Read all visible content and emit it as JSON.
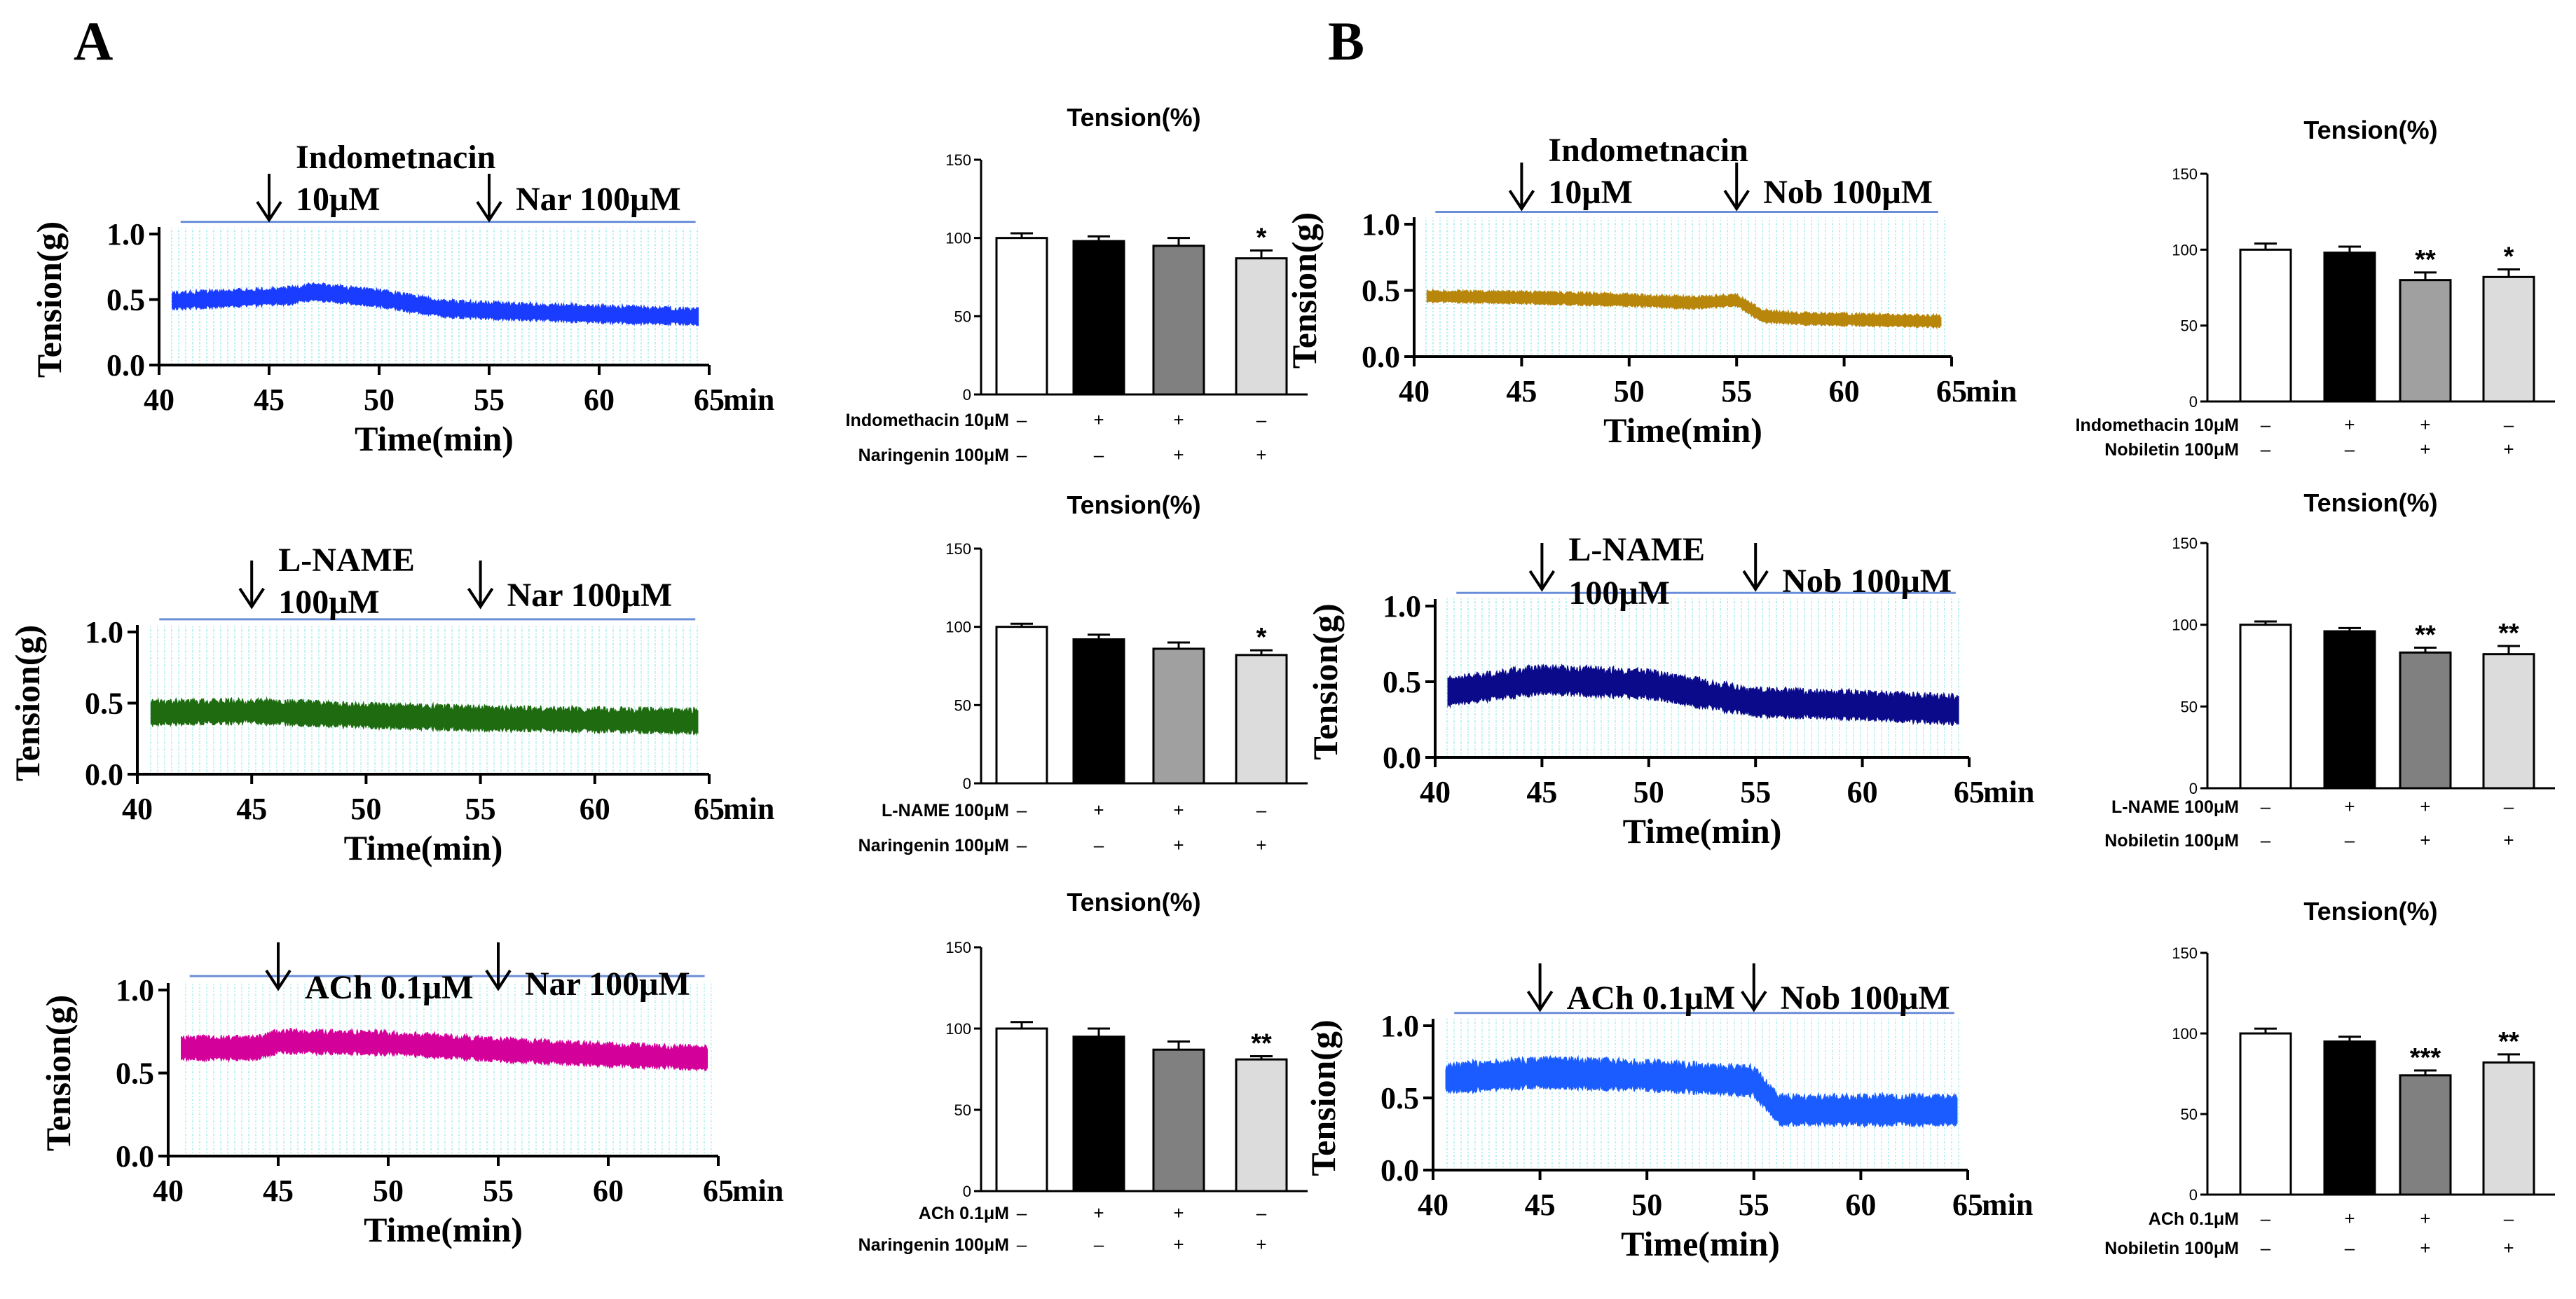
{
  "figure": {
    "panel_labels": [
      "A",
      "B"
    ]
  },
  "chart_data": [
    {
      "type": "line",
      "id": "A1",
      "panel": "A",
      "ylabel": "Tension(g)",
      "xlabel": "Time(min)",
      "xunit": "min",
      "ylim": [
        0,
        1.0
      ],
      "xlim": [
        40,
        65
      ],
      "yticks": [
        "0.0",
        "0.5",
        "1.0"
      ],
      "xticks": [
        "40",
        "45",
        "50",
        "55",
        "60",
        "65"
      ],
      "color": "#1a3cff",
      "trace": {
        "base": [
          [
            40.5,
            0.48
          ],
          [
            46,
            0.52
          ],
          [
            47,
            0.55
          ],
          [
            50,
            0.5
          ],
          [
            53,
            0.42
          ],
          [
            56,
            0.4
          ],
          [
            60,
            0.38
          ],
          [
            64.5,
            0.36
          ]
        ],
        "amp": 0.14
      },
      "annotations": [
        {
          "arrow_x": 45,
          "lines": [
            "Indometnacin",
            "10μM"
          ]
        },
        {
          "arrow_x": 55,
          "lines": [
            "Nar 100μM"
          ]
        }
      ]
    },
    {
      "type": "line",
      "id": "A2",
      "panel": "A",
      "ylabel": "Tension(g)",
      "xlabel": "Time(min)",
      "xunit": "min",
      "ylim": [
        0,
        1.0
      ],
      "xlim": [
        40,
        65
      ],
      "yticks": [
        "0.0",
        "0.5",
        "1.0"
      ],
      "xticks": [
        "40",
        "45",
        "50",
        "55",
        "60",
        "65"
      ],
      "color": "#1e6b10",
      "trace": {
        "base": [
          [
            40.5,
            0.42
          ],
          [
            45,
            0.43
          ],
          [
            50,
            0.4
          ],
          [
            55,
            0.38
          ],
          [
            60,
            0.37
          ],
          [
            64.5,
            0.36
          ]
        ],
        "amp": 0.18
      },
      "annotations": [
        {
          "arrow_x": 45,
          "lines": [
            "L-NAME",
            "100μM"
          ]
        },
        {
          "arrow_x": 55,
          "lines": [
            "Nar 100μM"
          ]
        }
      ]
    },
    {
      "type": "line",
      "id": "A3",
      "panel": "A",
      "ylabel": "Tension(g)",
      "xlabel": "Time(min)",
      "xunit": "min",
      "ylim": [
        0,
        1.0
      ],
      "xlim": [
        40,
        65
      ],
      "yticks": [
        "0.0",
        "0.5",
        "1.0"
      ],
      "xticks": [
        "40",
        "45",
        "50",
        "55",
        "60",
        "65"
      ],
      "color": "#d4009a",
      "trace": {
        "base": [
          [
            40.5,
            0.64
          ],
          [
            44,
            0.64
          ],
          [
            45,
            0.68
          ],
          [
            50,
            0.67
          ],
          [
            55,
            0.63
          ],
          [
            60,
            0.6
          ],
          [
            64.5,
            0.58
          ]
        ],
        "amp": 0.15
      },
      "annotations": [
        {
          "arrow_x": 45,
          "lines": [
            "ACh 0.1μM"
          ]
        },
        {
          "arrow_x": 55,
          "lines": [
            "Nar 100μM"
          ]
        }
      ]
    },
    {
      "type": "line",
      "id": "B1",
      "panel": "B",
      "ylabel": "Tension(g)",
      "xlabel": "Time(min)",
      "xunit": "min",
      "ylim": [
        0,
        1.0
      ],
      "xlim": [
        40,
        65
      ],
      "yticks": [
        "0.0",
        "0.5",
        "1.0"
      ],
      "xticks": [
        "40",
        "45",
        "50",
        "55",
        "60",
        "65"
      ],
      "color": "#b8860b",
      "trace": {
        "base": [
          [
            40.5,
            0.45
          ],
          [
            45,
            0.44
          ],
          [
            50,
            0.42
          ],
          [
            53,
            0.4
          ],
          [
            55,
            0.42
          ],
          [
            56.2,
            0.3
          ],
          [
            58,
            0.28
          ],
          [
            64.5,
            0.26
          ]
        ],
        "amp": 0.1
      },
      "annotations": [
        {
          "arrow_x": 45,
          "lines": [
            "Indometnacin",
            "10μM"
          ]
        },
        {
          "arrow_x": 55,
          "lines": [
            "Nob 100μM"
          ]
        }
      ]
    },
    {
      "type": "line",
      "id": "B2",
      "panel": "B",
      "ylabel": "Tension(g)",
      "xlabel": "Time(min)",
      "xunit": "min",
      "ylim": [
        0,
        1.0
      ],
      "xlim": [
        40,
        65
      ],
      "yticks": [
        "0.0",
        "0.5",
        "1.0"
      ],
      "xticks": [
        "40",
        "45",
        "50",
        "55",
        "60",
        "65"
      ],
      "color": "#0a0a8a",
      "trace": {
        "base": [
          [
            40.5,
            0.42
          ],
          [
            45,
            0.5
          ],
          [
            50,
            0.47
          ],
          [
            52,
            0.42
          ],
          [
            55,
            0.35
          ],
          [
            60,
            0.33
          ],
          [
            64.5,
            0.3
          ]
        ],
        "amp": 0.2
      },
      "annotations": [
        {
          "arrow_x": 45,
          "lines": [
            "L-NAME",
            "100μM"
          ]
        },
        {
          "arrow_x": 55,
          "lines": [
            "Nob 100μM"
          ]
        }
      ]
    },
    {
      "type": "line",
      "id": "B3",
      "panel": "B",
      "ylabel": "Tension(g)",
      "xlabel": "Time(min)",
      "xunit": "min",
      "ylim": [
        0,
        1.0
      ],
      "xlim": [
        40,
        65
      ],
      "yticks": [
        "0.0",
        "0.5",
        "1.0"
      ],
      "xticks": [
        "40",
        "45",
        "50",
        "55",
        "60",
        "65"
      ],
      "color": "#1a5cff",
      "trace": {
        "base": [
          [
            40.5,
            0.62
          ],
          [
            45,
            0.66
          ],
          [
            50,
            0.64
          ],
          [
            55,
            0.6
          ],
          [
            56.2,
            0.4
          ],
          [
            58,
            0.4
          ],
          [
            64.5,
            0.4
          ]
        ],
        "amp": 0.22
      },
      "annotations": [
        {
          "arrow_x": 45,
          "lines": [
            "ACh 0.1μM"
          ]
        },
        {
          "arrow_x": 55,
          "lines": [
            "Nob 100μM"
          ]
        }
      ]
    },
    {
      "type": "bar",
      "id": "A1-bar",
      "panel": "A",
      "title": "Tension(%)",
      "ylim": [
        0,
        150
      ],
      "yticks": [
        "0",
        "50",
        "100",
        "150"
      ],
      "values": [
        100,
        98,
        95,
        87
      ],
      "errors": [
        3,
        3,
        5,
        5
      ],
      "fills": [
        "#ffffff",
        "#000000",
        "#808080",
        "#dcdcdc"
      ],
      "significance": [
        "",
        "",
        "",
        "*"
      ],
      "treatment_rows": [
        {
          "label": "Indomethacin 10μM",
          "marks": [
            "–",
            "+",
            "+",
            "–"
          ]
        },
        {
          "label": "Naringenin 100μM",
          "marks": [
            "–",
            "–",
            "+",
            "+"
          ]
        }
      ]
    },
    {
      "type": "bar",
      "id": "A2-bar",
      "panel": "A",
      "title": "Tension(%)",
      "ylim": [
        0,
        150
      ],
      "yticks": [
        "0",
        "50",
        "100",
        "150"
      ],
      "values": [
        100,
        92,
        86,
        82
      ],
      "errors": [
        2,
        3,
        4,
        3
      ],
      "fills": [
        "#ffffff",
        "#000000",
        "#a0a0a0",
        "#dcdcdc"
      ],
      "significance": [
        "",
        "",
        "",
        "*"
      ],
      "treatment_rows": [
        {
          "label": "L-NAME 100μM",
          "marks": [
            "–",
            "+",
            "+",
            "–"
          ]
        },
        {
          "label": "Naringenin 100μM",
          "marks": [
            "–",
            "–",
            "+",
            "+"
          ]
        }
      ]
    },
    {
      "type": "bar",
      "id": "A3-bar",
      "panel": "A",
      "title": "Tension(%)",
      "ylim": [
        0,
        150
      ],
      "yticks": [
        "0",
        "50",
        "100",
        "150"
      ],
      "values": [
        100,
        95,
        87,
        81
      ],
      "errors": [
        4,
        5,
        5,
        2
      ],
      "fills": [
        "#ffffff",
        "#000000",
        "#808080",
        "#dcdcdc"
      ],
      "significance": [
        "",
        "",
        "",
        "**"
      ],
      "treatment_rows": [
        {
          "label": "ACh 0.1μM",
          "marks": [
            "–",
            "+",
            "+",
            "–"
          ]
        },
        {
          "label": "Naringenin 100μM",
          "marks": [
            "–",
            "–",
            "+",
            "+"
          ]
        }
      ]
    },
    {
      "type": "bar",
      "id": "B1-bar",
      "panel": "B",
      "title": "Tension(%)",
      "ylim": [
        0,
        150
      ],
      "yticks": [
        "0",
        "50",
        "100",
        "150"
      ],
      "values": [
        100,
        98,
        80,
        82
      ],
      "errors": [
        4,
        4,
        5,
        5
      ],
      "fills": [
        "#ffffff",
        "#000000",
        "#a0a0a0",
        "#dcdcdc"
      ],
      "significance": [
        "",
        "",
        "**",
        "*"
      ],
      "treatment_rows": [
        {
          "label": "Indomethacin 10μM",
          "marks": [
            "–",
            "+",
            "+",
            "–"
          ]
        },
        {
          "label": "Nobiletin 100μM",
          "marks": [
            "–",
            "–",
            "+",
            "+"
          ]
        }
      ]
    },
    {
      "type": "bar",
      "id": "B2-bar",
      "panel": "B",
      "title": "Tension(%)",
      "ylim": [
        0,
        150
      ],
      "yticks": [
        "0",
        "50",
        "100",
        "150"
      ],
      "values": [
        100,
        96,
        83,
        82
      ],
      "errors": [
        2,
        2,
        3,
        5
      ],
      "fills": [
        "#ffffff",
        "#000000",
        "#808080",
        "#dcdcdc"
      ],
      "significance": [
        "",
        "",
        "**",
        "**"
      ],
      "treatment_rows": [
        {
          "label": "L-NAME 100μM",
          "marks": [
            "–",
            "+",
            "+",
            "–"
          ]
        },
        {
          "label": "Nobiletin 100μM",
          "marks": [
            "–",
            "–",
            "+",
            "+"
          ]
        }
      ]
    },
    {
      "type": "bar",
      "id": "B3-bar",
      "panel": "B",
      "title": "Tension(%)",
      "ylim": [
        0,
        150
      ],
      "yticks": [
        "0",
        "50",
        "100",
        "150"
      ],
      "values": [
        100,
        95,
        74,
        82
      ],
      "errors": [
        3,
        3,
        3,
        5
      ],
      "fills": [
        "#ffffff",
        "#000000",
        "#808080",
        "#dcdcdc"
      ],
      "significance": [
        "",
        "",
        "***",
        "**"
      ],
      "treatment_rows": [
        {
          "label": "ACh 0.1μM",
          "marks": [
            "–",
            "+",
            "+",
            "–"
          ]
        },
        {
          "label": "Nobiletin 100μM",
          "marks": [
            "–",
            "–",
            "+",
            "+"
          ]
        }
      ]
    }
  ]
}
